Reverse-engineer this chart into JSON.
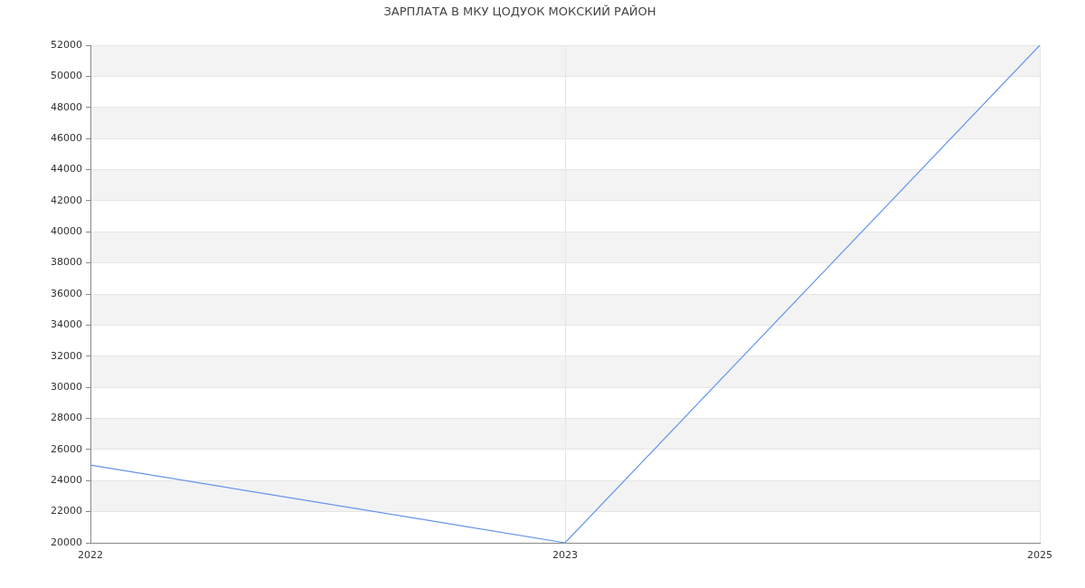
{
  "chart_data": {
    "type": "line",
    "title": "ЗАРПЛАТА В МКУ ЦОДУОК МОКСКИЙ РАЙОН",
    "categories": [
      "2022",
      "2023",
      "2025"
    ],
    "series": [
      {
        "color": "#6495ed",
        "values": [
          25000,
          20000,
          52000
        ]
      }
    ],
    "ylim": [
      20000,
      52000
    ],
    "yticks": [
      20000,
      22000,
      24000,
      26000,
      28000,
      30000,
      32000,
      34000,
      36000,
      38000,
      40000,
      42000,
      44000,
      46000,
      48000,
      50000,
      52000
    ],
    "grid": true,
    "marker": "none"
  }
}
